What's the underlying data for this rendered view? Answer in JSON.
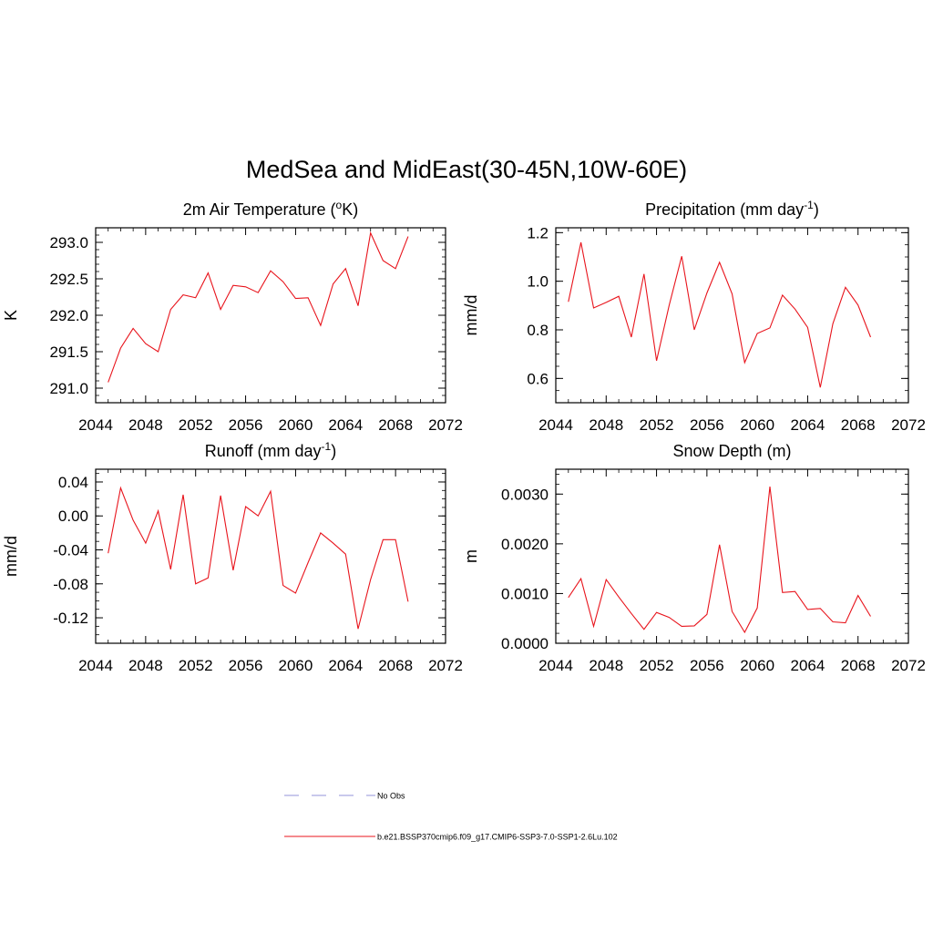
{
  "figure": {
    "title": "MedSea and MidEast(30-45N,10W-60E)",
    "line_color": "#e8141c",
    "obs_color": "#a9a9e0"
  },
  "legend": {
    "items": [
      {
        "label": "No Obs",
        "style": "dashed",
        "color": "#a9a9e0"
      },
      {
        "label": "b.e21.BSSP370cmip6.f09_g17.CMIP6-SSP3-7.0-SSP1-2.6Lu.102",
        "style": "solid",
        "color": "#e8141c"
      }
    ]
  },
  "chart_data": [
    {
      "type": "line",
      "id": "temperature",
      "title_main": "2m Air Temperature (",
      "title_sup_pre": "o",
      "title_mid": "K)",
      "title_sup": "",
      "title_end": "",
      "ylabel": "K",
      "xlim": [
        2044,
        2072
      ],
      "xticks": [
        2044,
        2048,
        2052,
        2056,
        2060,
        2064,
        2068,
        2072
      ],
      "ylim": [
        290.8,
        293.2
      ],
      "yticks": [
        "291.0",
        "291.5",
        "292.0",
        "292.5",
        "293.0"
      ],
      "yminor_step": 0.1,
      "x": [
        2045,
        2046,
        2047,
        2048,
        2049,
        2050,
        2051,
        2052,
        2053,
        2054,
        2055,
        2056,
        2057,
        2058,
        2059,
        2060,
        2061,
        2062,
        2063,
        2064,
        2065,
        2066,
        2067,
        2068,
        2069
      ],
      "series": [
        {
          "values": [
            291.08,
            291.55,
            291.82,
            291.61,
            291.5,
            292.08,
            292.28,
            292.24,
            292.58,
            292.08,
            292.41,
            292.39,
            292.31,
            292.61,
            292.46,
            292.23,
            292.24,
            291.86,
            292.43,
            292.64,
            292.13,
            293.13,
            292.75,
            292.64,
            293.08
          ]
        }
      ]
    },
    {
      "type": "line",
      "id": "precipitation",
      "title_main": "Precipitation (mm day",
      "title_sup_pre": "",
      "title_mid": "",
      "title_sup": "-1",
      "title_end": ")",
      "ylabel": "mm/d",
      "xlim": [
        2044,
        2072
      ],
      "xticks": [
        2044,
        2048,
        2052,
        2056,
        2060,
        2064,
        2068,
        2072
      ],
      "ylim": [
        0.5,
        1.22
      ],
      "yticks": [
        "0.6",
        "0.8",
        "1.0",
        "1.2"
      ],
      "yminor_step": 0.05,
      "x": [
        2045,
        2046,
        2047,
        2048,
        2049,
        2050,
        2051,
        2052,
        2053,
        2054,
        2055,
        2056,
        2057,
        2058,
        2059,
        2060,
        2061,
        2062,
        2063,
        2064,
        2065,
        2066,
        2067,
        2068,
        2069
      ],
      "series": [
        {
          "values": [
            0.915,
            1.16,
            0.89,
            0.913,
            0.938,
            0.77,
            1.03,
            0.673,
            0.9,
            1.103,
            0.8,
            0.952,
            1.078,
            0.948,
            0.665,
            0.785,
            0.808,
            0.943,
            0.885,
            0.81,
            0.563,
            0.825,
            0.975,
            0.902,
            0.77
          ]
        }
      ]
    },
    {
      "type": "line",
      "id": "runoff",
      "title_main": "Runoff (mm day",
      "title_sup_pre": "",
      "title_mid": "",
      "title_sup": "-1",
      "title_end": ")",
      "ylabel": "mm/d",
      "xlim": [
        2044,
        2072
      ],
      "xticks": [
        2044,
        2048,
        2052,
        2056,
        2060,
        2064,
        2068,
        2072
      ],
      "ylim": [
        -0.15,
        0.055
      ],
      "yticks": [
        "-0.12",
        "-0.08",
        "-0.04",
        "0.00",
        "0.04"
      ],
      "yminor_step": 0.01,
      "x": [
        2045,
        2046,
        2047,
        2048,
        2049,
        2050,
        2051,
        2052,
        2053,
        2054,
        2055,
        2056,
        2057,
        2058,
        2059,
        2060,
        2061,
        2062,
        2063,
        2064,
        2065,
        2066,
        2067,
        2068,
        2069
      ],
      "series": [
        {
          "values": [
            -0.044,
            0.033,
            -0.005,
            -0.032,
            0.006,
            -0.063,
            0.025,
            -0.08,
            -0.073,
            0.024,
            -0.064,
            0.011,
            0.0,
            0.029,
            -0.082,
            -0.091,
            -0.055,
            -0.02,
            -0.032,
            -0.045,
            -0.133,
            -0.075,
            -0.028,
            -0.028,
            -0.101
          ]
        }
      ]
    },
    {
      "type": "line",
      "id": "snow-depth",
      "title_main": "Snow Depth (m)",
      "title_sup_pre": "",
      "title_mid": "",
      "title_sup": "",
      "title_end": "",
      "ylabel": "m",
      "xlim": [
        2044,
        2072
      ],
      "xticks": [
        2044,
        2048,
        2052,
        2056,
        2060,
        2064,
        2068,
        2072
      ],
      "ylim": [
        0.0,
        0.0035
      ],
      "yticks": [
        "0.0000",
        "0.0010",
        "0.0020",
        "0.0030"
      ],
      "yminor_step": 0.0002,
      "x": [
        2045,
        2046,
        2047,
        2048,
        2049,
        2050,
        2051,
        2052,
        2053,
        2054,
        2055,
        2056,
        2057,
        2058,
        2059,
        2060,
        2061,
        2062,
        2063,
        2064,
        2065,
        2066,
        2067,
        2068,
        2069
      ],
      "series": [
        {
          "values": [
            0.00092,
            0.0013,
            0.00034,
            0.00128,
            0.00093,
            0.0006,
            0.00028,
            0.00062,
            0.00052,
            0.00034,
            0.00035,
            0.00058,
            0.00198,
            0.00064,
            0.00022,
            0.00071,
            0.00315,
            0.00102,
            0.00104,
            0.00068,
            0.0007,
            0.00043,
            0.00041,
            0.00096,
            0.00054
          ]
        }
      ]
    }
  ]
}
